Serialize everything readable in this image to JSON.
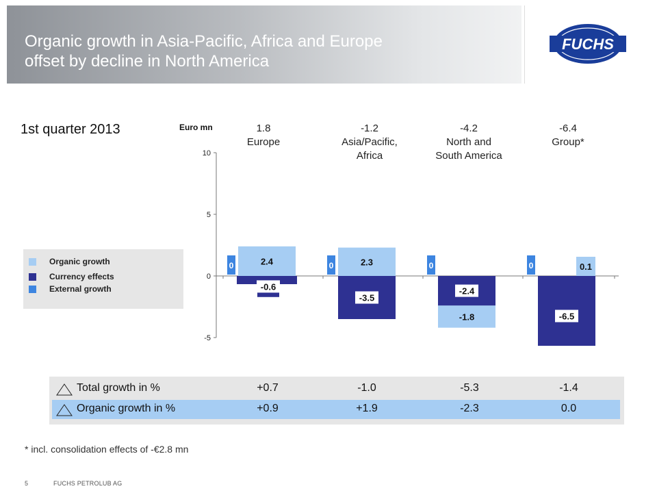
{
  "header": {
    "title_line1": "Organic growth in Asia-Pacific, Africa and Europe",
    "title_line2": "offset by decline in North America"
  },
  "logo": {
    "text": "FUCHS"
  },
  "subtitle": "1st quarter 2013",
  "unit_label": "Euro mn",
  "regions": [
    {
      "total": "1.8",
      "name_line1": "Europe",
      "name_line2": ""
    },
    {
      "total": "-1.2",
      "name_line1": "Asia/Pacific,",
      "name_line2": "Africa"
    },
    {
      "total": "-4.2",
      "name_line1": "North and",
      "name_line2": "South America"
    },
    {
      "total": "-6.4",
      "name_line1": "Group*",
      "name_line2": ""
    }
  ],
  "legend": [
    {
      "label": "Organic growth",
      "color": "#a6cdf3"
    },
    {
      "label": "Currency effects",
      "color": "#2e3192"
    },
    {
      "label": "External growth",
      "color": "#3d85e0"
    }
  ],
  "chart_data": {
    "type": "bar",
    "stacked": true,
    "categories": [
      "Europe",
      "Asia/Pacific, Africa",
      "North and South America",
      "Group*"
    ],
    "ylim": [
      -5,
      10
    ],
    "yticks": [
      "10",
      "5",
      "0",
      "-5"
    ],
    "series": [
      {
        "name": "External growth",
        "color": "#3d85e0",
        "values": [
          0,
          0,
          0,
          0
        ],
        "labels": [
          "0",
          "0",
          "0",
          "0"
        ]
      },
      {
        "name": "Organic growth",
        "color": "#a6cdf3",
        "values": [
          2.4,
          2.3,
          -1.8,
          0.1
        ],
        "labels": [
          "2.4",
          "2.3",
          "-1.8",
          "0.1"
        ]
      },
      {
        "name": "Currency effects",
        "color": "#2e3192",
        "values": [
          -0.6,
          -3.5,
          -2.4,
          -6.5
        ],
        "labels": [
          "-0.6",
          "-3.5",
          "-2.4",
          "-6.5"
        ]
      }
    ]
  },
  "table": {
    "rows": [
      {
        "label": "Total growth in %",
        "values": [
          "+0.7",
          "-1.0",
          "-5.3",
          "-1.4"
        ]
      },
      {
        "label": "Organic growth in %",
        "values": [
          "+0.9",
          "+1.9",
          "-2.3",
          "0.0"
        ]
      }
    ]
  },
  "footnote": "* incl. consolidation effects of -€2.8 mn",
  "footer": {
    "page": "5",
    "company": "FUCHS PETROLUB AG"
  }
}
